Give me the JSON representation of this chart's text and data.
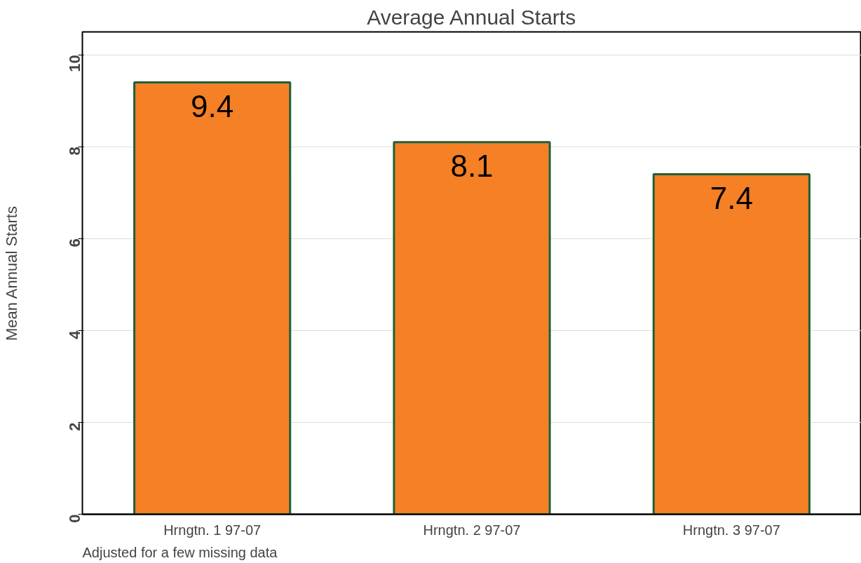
{
  "chart_data": {
    "type": "bar",
    "title": "Average Annual Starts",
    "ylabel": "Mean Annual Starts",
    "categories": [
      "Hrngtn. 1 97-07",
      "Hrngtn. 2 97-07",
      "Hrngtn. 3 97-07"
    ],
    "values": [
      9.4,
      8.1,
      7.4
    ],
    "color": "#f58025",
    "ylim": [
      0,
      10.5
    ],
    "yticks": [
      0,
      2,
      4,
      6,
      8,
      10
    ],
    "grid": "y",
    "data_labels": true,
    "annotations": [
      "Adjusted for a few missing data"
    ]
  }
}
